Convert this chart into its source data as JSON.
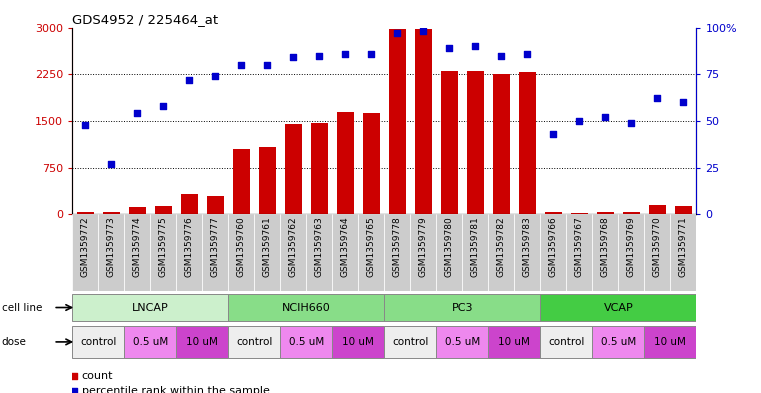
{
  "title": "GDS4952 / 225464_at",
  "samples": [
    "GSM1359772",
    "GSM1359773",
    "GSM1359774",
    "GSM1359775",
    "GSM1359776",
    "GSM1359777",
    "GSM1359760",
    "GSM1359761",
    "GSM1359762",
    "GSM1359763",
    "GSM1359764",
    "GSM1359765",
    "GSM1359778",
    "GSM1359779",
    "GSM1359780",
    "GSM1359781",
    "GSM1359782",
    "GSM1359783",
    "GSM1359766",
    "GSM1359767",
    "GSM1359768",
    "GSM1359769",
    "GSM1359770",
    "GSM1359771"
  ],
  "counts": [
    30,
    40,
    110,
    130,
    320,
    290,
    1050,
    1080,
    1450,
    1460,
    1650,
    1630,
    2970,
    2980,
    2300,
    2300,
    2250,
    2280,
    35,
    25,
    35,
    35,
    145,
    130
  ],
  "percentile_ranks": [
    48,
    27,
    54,
    58,
    72,
    74,
    80,
    80,
    84,
    85,
    86,
    86,
    97,
    98,
    89,
    90,
    85,
    86,
    43,
    50,
    52,
    49,
    62,
    60
  ],
  "cell_lines": [
    {
      "name": "LNCAP",
      "start": 0,
      "end": 6,
      "color": "#ccf0cc"
    },
    {
      "name": "NCIH660",
      "start": 6,
      "end": 12,
      "color": "#88dd88"
    },
    {
      "name": "PC3",
      "start": 12,
      "end": 18,
      "color": "#88dd88"
    },
    {
      "name": "VCAP",
      "start": 18,
      "end": 24,
      "color": "#44cc44"
    }
  ],
  "dose_blocks": [
    {
      "label": "control",
      "start": 0,
      "end": 2,
      "color": "#eeeeee"
    },
    {
      "label": "0.5 uM",
      "start": 2,
      "end": 4,
      "color": "#ee88ee"
    },
    {
      "label": "10 uM",
      "start": 4,
      "end": 6,
      "color": "#cc44cc"
    },
    {
      "label": "control",
      "start": 6,
      "end": 8,
      "color": "#eeeeee"
    },
    {
      "label": "0.5 uM",
      "start": 8,
      "end": 10,
      "color": "#ee88ee"
    },
    {
      "label": "10 uM",
      "start": 10,
      "end": 12,
      "color": "#cc44cc"
    },
    {
      "label": "control",
      "start": 12,
      "end": 14,
      "color": "#eeeeee"
    },
    {
      "label": "0.5 uM",
      "start": 14,
      "end": 16,
      "color": "#ee88ee"
    },
    {
      "label": "10 uM",
      "start": 16,
      "end": 18,
      "color": "#cc44cc"
    },
    {
      "label": "control",
      "start": 18,
      "end": 20,
      "color": "#eeeeee"
    },
    {
      "label": "0.5 uM",
      "start": 20,
      "end": 22,
      "color": "#ee88ee"
    },
    {
      "label": "10 uM",
      "start": 22,
      "end": 24,
      "color": "#cc44cc"
    }
  ],
  "bar_color": "#cc0000",
  "dot_color": "#0000cc",
  "ylim_left": [
    0,
    3000
  ],
  "ylim_right": [
    0,
    100
  ],
  "yticks_left": [
    0,
    750,
    1500,
    2250,
    3000
  ],
  "yticks_right": [
    0,
    25,
    50,
    75,
    100
  ],
  "ytick_right_labels": [
    "0",
    "25",
    "50",
    "75",
    "100%"
  ],
  "grid_lines": [
    750,
    1500,
    2250
  ],
  "background_color": "#ffffff",
  "tick_label_bg": "#cccccc",
  "legend_count_color": "#cc0000",
  "legend_dot_color": "#0000cc",
  "cell_line_label_left": "cell line",
  "dose_label_left": "dose"
}
